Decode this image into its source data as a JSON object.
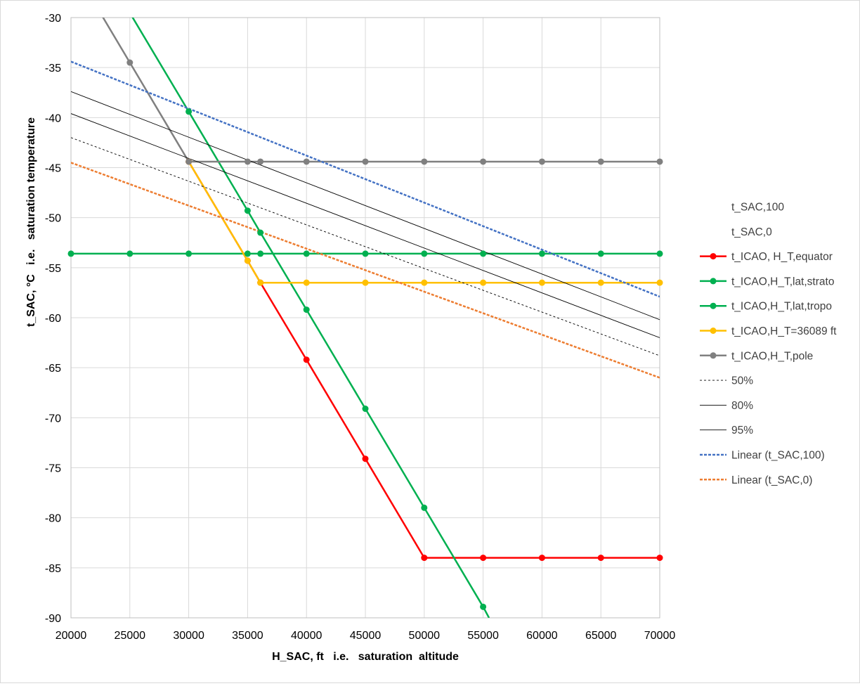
{
  "chart_data": {
    "type": "line",
    "title": "",
    "xlabel": "H_SAC, ft   i.e.   saturation  altitude",
    "ylabel": "t_SAC, °C   i.e.   saturation temperature",
    "xlim": [
      20000,
      70000
    ],
    "ylim": [
      -90,
      -30
    ],
    "x_ticks": [
      20000,
      25000,
      30000,
      35000,
      40000,
      45000,
      50000,
      55000,
      60000,
      65000,
      70000
    ],
    "y_ticks": [
      -30,
      -35,
      -40,
      -45,
      -50,
      -55,
      -60,
      -65,
      -70,
      -75,
      -80,
      -85,
      -90
    ],
    "grid": true,
    "legend_position": "right",
    "series": [
      {
        "name": "t_SAC,100",
        "color": "#4472c4",
        "style": "none",
        "markers": false,
        "x": [],
        "y": []
      },
      {
        "name": "t_SAC,0",
        "color": "#ed7d31",
        "style": "none",
        "markers": false,
        "x": [],
        "y": []
      },
      {
        "name": "t_ICAO, H_T,equator",
        "color": "#ff0000",
        "style": "solid",
        "width": 2.5,
        "markers": true,
        "x": [
          30000,
          35000,
          36089,
          40000,
          45000,
          50000,
          55000,
          60000,
          65000,
          70000
        ],
        "y": [
          -44.4,
          -54.3,
          -56.5,
          -64.2,
          -74.1,
          -84.0,
          -84.0,
          -84.0,
          -84.0,
          -84.0
        ]
      },
      {
        "name": "t_ICAO,H_T,lat,strato",
        "color": "#00b050",
        "style": "solid",
        "width": 2.5,
        "markers": true,
        "x": [
          20000,
          25000,
          30000,
          35000,
          36089,
          40000,
          45000,
          50000,
          55000,
          60000,
          65000,
          70000
        ],
        "y": [
          -53.6,
          -53.6,
          -53.6,
          -53.6,
          -53.6,
          -53.6,
          -53.6,
          -53.6,
          -53.6,
          -53.6,
          -53.6,
          -53.6
        ]
      },
      {
        "name": "t_ICAO,H_T,lat,tropo",
        "color": "#00b050",
        "style": "solid",
        "width": 2.5,
        "markers": true,
        "x": [
          22000,
          30000,
          35000,
          36089,
          40000,
          45000,
          50000,
          55000,
          55500
        ],
        "y": [
          -23.6,
          -39.4,
          -49.3,
          -51.5,
          -59.2,
          -69.1,
          -79.0,
          -88.9,
          -90.0
        ]
      },
      {
        "name": "t_ICAO,H_T=36089 ft",
        "color": "#ffc000",
        "style": "solid",
        "width": 2.5,
        "markers": true,
        "x": [
          30000,
          35000,
          36089,
          40000,
          45000,
          50000,
          55000,
          60000,
          65000,
          70000
        ],
        "y": [
          -44.4,
          -54.3,
          -56.5,
          -56.5,
          -56.5,
          -56.5,
          -56.5,
          -56.5,
          -56.5,
          -56.5
        ]
      },
      {
        "name": "t_ICAO,H_T,pole",
        "color": "#808080",
        "style": "solid",
        "width": 2.5,
        "markers": true,
        "x": [
          20000,
          25000,
          30000,
          35000,
          36089,
          40000,
          45000,
          50000,
          55000,
          60000,
          65000,
          70000
        ],
        "y": [
          -24.6,
          -34.5,
          -44.4,
          -44.4,
          -44.4,
          -44.4,
          -44.4,
          -44.4,
          -44.4,
          -44.4,
          -44.4,
          -44.4
        ]
      },
      {
        "name": "50%",
        "color": "#000000",
        "style": "dotted",
        "width": 0.9,
        "markers": false,
        "x": [
          20000,
          70000
        ],
        "y": [
          -42.0,
          -63.8
        ]
      },
      {
        "name": "80%",
        "color": "#000000",
        "style": "solid",
        "width": 0.9,
        "markers": false,
        "x": [
          20000,
          70000
        ],
        "y": [
          -39.6,
          -62.0
        ]
      },
      {
        "name": "95%",
        "color": "#000000",
        "style": "solid",
        "width": 0.9,
        "markers": false,
        "x": [
          20000,
          70000
        ],
        "y": [
          -37.4,
          -60.2
        ]
      },
      {
        "name": "Linear (t_SAC,100)",
        "color": "#4472c4",
        "style": "dashed",
        "width": 2.5,
        "markers": false,
        "x": [
          20000,
          70000
        ],
        "y": [
          -34.4,
          -57.9
        ]
      },
      {
        "name": "Linear (t_SAC,0)",
        "color": "#ed7d31",
        "style": "dashed",
        "width": 2.5,
        "markers": false,
        "x": [
          20000,
          70000
        ],
        "y": [
          -44.5,
          -66.0
        ]
      }
    ]
  }
}
